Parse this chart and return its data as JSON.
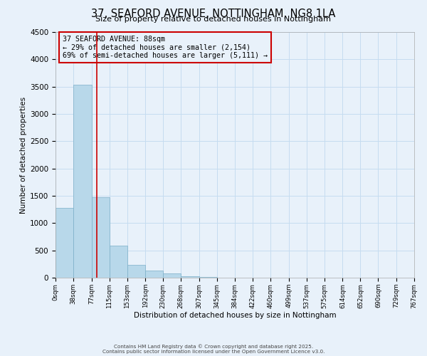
{
  "title": "37, SEAFORD AVENUE, NOTTINGHAM, NG8 1LA",
  "subtitle": "Size of property relative to detached houses in Nottingham",
  "xlabel": "Distribution of detached houses by size in Nottingham",
  "ylabel": "Number of detached properties",
  "bar_heights": [
    1280,
    3540,
    1480,
    590,
    235,
    135,
    75,
    25,
    10,
    5,
    3,
    2,
    1,
    0,
    0,
    0,
    0,
    0,
    0,
    0
  ],
  "bin_edges": [
    0,
    38,
    77,
    115,
    153,
    192,
    230,
    268,
    307,
    345,
    384,
    422,
    460,
    499,
    537,
    575,
    614,
    652,
    690,
    729,
    767
  ],
  "bar_color": "#B8D8EA",
  "bar_edgecolor": "#7BAEC8",
  "property_line_x": 88,
  "property_line_color": "#CC0000",
  "annotation_text": "37 SEAFORD AVENUE: 88sqm\n← 29% of detached houses are smaller (2,154)\n69% of semi-detached houses are larger (5,111) →",
  "annotation_box_color": "#CC0000",
  "ylim": [
    0,
    4500
  ],
  "grid_color": "#C5DCF0",
  "bg_color": "#E8F1FA",
  "tick_labels": [
    "0sqm",
    "38sqm",
    "77sqm",
    "115sqm",
    "153sqm",
    "192sqm",
    "230sqm",
    "268sqm",
    "307sqm",
    "345sqm",
    "384sqm",
    "422sqm",
    "460sqm",
    "499sqm",
    "537sqm",
    "575sqm",
    "614sqm",
    "652sqm",
    "690sqm",
    "729sqm",
    "767sqm"
  ],
  "footer_line1": "Contains HM Land Registry data © Crown copyright and database right 2025.",
  "footer_line2": "Contains public sector information licensed under the Open Government Licence v3.0."
}
